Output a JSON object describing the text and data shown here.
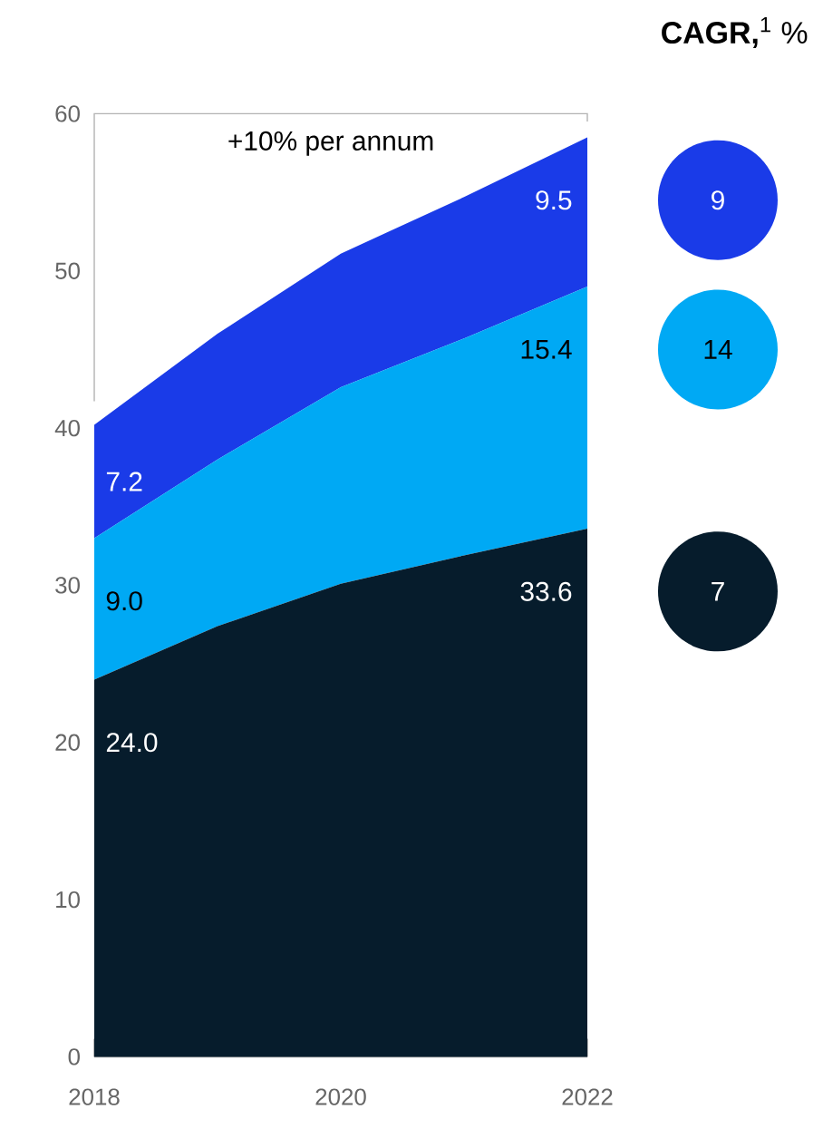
{
  "chart_data": {
    "type": "area",
    "stacked": true,
    "categories": [
      "2018",
      null,
      "2020",
      null,
      "2022"
    ],
    "series": [
      {
        "name": "7",
        "color": "#061c2c",
        "values": [
          24.0,
          27.4,
          30.1,
          31.9,
          33.6
        ],
        "value_labels": [
          "24.0",
          null,
          null,
          null,
          "33.6"
        ]
      },
      {
        "name": "14",
        "color": "#00a9f4",
        "values": [
          9.0,
          10.6,
          12.5,
          13.8,
          15.4
        ],
        "value_labels": [
          "9.0",
          null,
          null,
          null,
          "15.4"
        ]
      },
      {
        "name": "9",
        "color": "#1a3be8",
        "values": [
          7.2,
          8.0,
          8.5,
          9.0,
          9.5
        ],
        "value_labels": [
          "7.2",
          null,
          null,
          null,
          "9.5"
        ]
      }
    ],
    "ylim": [
      0,
      60
    ],
    "yticks": [
      0,
      10,
      20,
      30,
      40,
      50,
      60
    ],
    "legend": "right",
    "legend_title": "**CAGR,**$^{1}$ %",
    "annotations": [
      "+10% per annum"
    ]
  }
}
